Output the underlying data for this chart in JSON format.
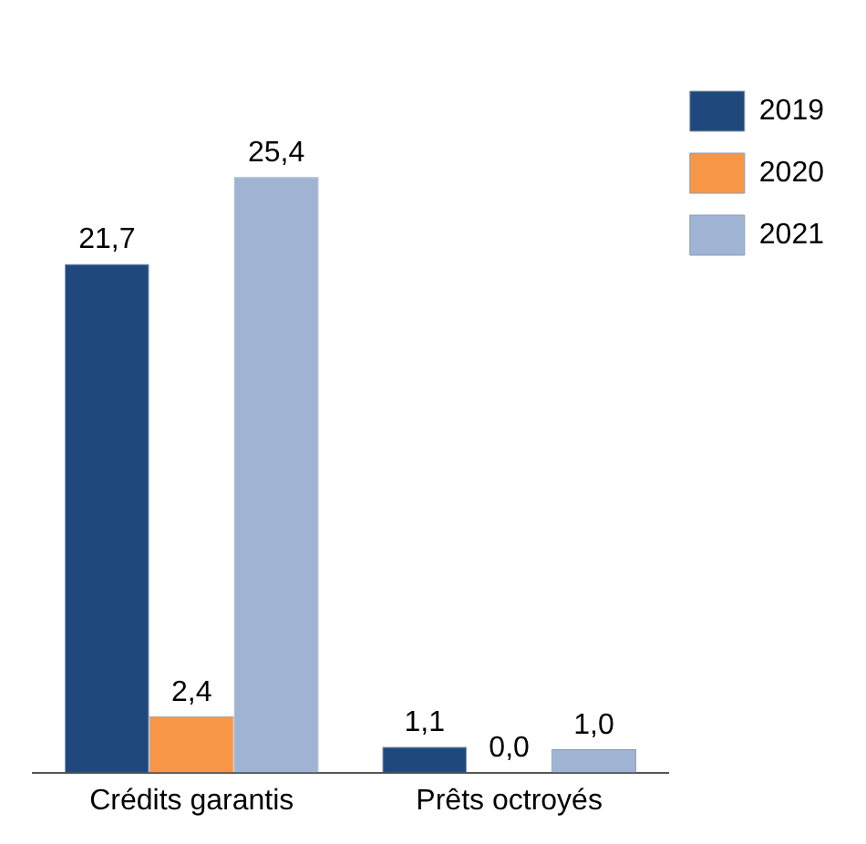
{
  "chart_data": {
    "type": "bar",
    "categories": [
      "Crédits garantis",
      "Prêts octroyés"
    ],
    "series": [
      {
        "name": "2019",
        "color": "#1f497d",
        "values": [
          21.7,
          1.1
        ],
        "value_labels": [
          "21,7",
          "1,1"
        ]
      },
      {
        "name": "2020",
        "color": "#f79646",
        "values": [
          2.4,
          0.0
        ],
        "value_labels": [
          "2,4",
          "0,0"
        ]
      },
      {
        "name": "2021",
        "color": "#9fb3d3",
        "values": [
          25.4,
          1.0
        ],
        "value_labels": [
          "25,4",
          "1,0"
        ]
      }
    ],
    "legend": "top right",
    "grid": false
  }
}
